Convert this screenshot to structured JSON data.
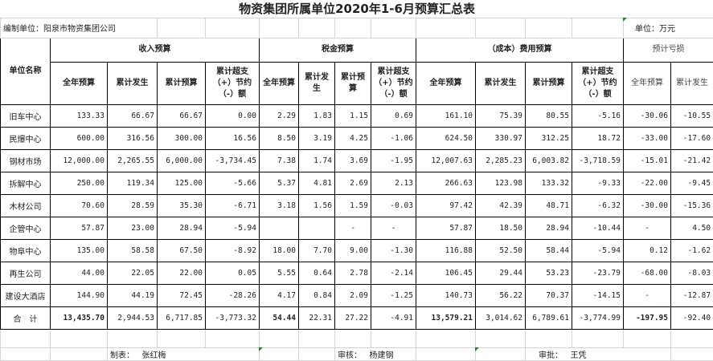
{
  "title": "物资集团所属单位2020年1-6月预算汇总表",
  "compiler": "编制单位：阳泉市物资集团公司",
  "unit": "单位：万元",
  "headers": {
    "unit_name": "单位名称",
    "income": "收入预算",
    "tax": "税金预算",
    "cost": "（成本）费用预算",
    "loss": "预计亏损",
    "annual": "全年预算",
    "actual": "累计发生",
    "cum_budget": "累计预算",
    "variance": "累计超支（+）节约（-）额"
  },
  "rows": [
    {
      "name": "旧车中心",
      "v": [
        "133.33",
        "66.67",
        "66.67",
        "0.00",
        "2.29",
        "1.83",
        "1.15",
        "0.69",
        "161.10",
        "75.39",
        "80.55",
        "-5.16",
        "-30.06",
        "-10.55"
      ]
    },
    {
      "name": "民爆中心",
      "v": [
        "600.00",
        "316.56",
        "300.00",
        "16.56",
        "8.50",
        "3.19",
        "4.25",
        "-1.06",
        "624.50",
        "330.97",
        "312.25",
        "18.72",
        "-33.00",
        "-17.60"
      ]
    },
    {
      "name": "钢材市场",
      "v": [
        "12,000.00",
        "2,265.55",
        "6,000.00",
        "-3,734.45",
        "7.38",
        "1.74",
        "3.69",
        "-1.95",
        "12,007.63",
        "2,285.23",
        "6,003.82",
        "-3,718.59",
        "-15.01",
        "-21.42"
      ]
    },
    {
      "name": "拆解中心",
      "v": [
        "250.00",
        "119.34",
        "125.00",
        "-5.66",
        "5.37",
        "4.81",
        "2.69",
        "2.13",
        "266.63",
        "123.98",
        "133.32",
        "-9.33",
        "-22.00",
        "-9.45"
      ]
    },
    {
      "name": "木材公司",
      "v": [
        "70.60",
        "28.59",
        "35.30",
        "-6.71",
        "3.18",
        "1.56",
        "1.59",
        "-0.03",
        "97.42",
        "42.39",
        "48.71",
        "-6.32",
        "-30.00",
        "-15.36"
      ]
    },
    {
      "name": "企管中心",
      "v": [
        "57.87",
        "23.00",
        "28.94",
        "-5.94",
        "",
        "",
        "-",
        "-",
        "57.87",
        "18.50",
        "28.94",
        "-10.44",
        "-",
        "4.50"
      ]
    },
    {
      "name": "物阜中心",
      "v": [
        "135.00",
        "58.58",
        "67.50",
        "-8.92",
        "18.00",
        "7.70",
        "9.00",
        "-1.30",
        "116.88",
        "52.50",
        "58.44",
        "-5.94",
        "0.12",
        "-1.62"
      ]
    },
    {
      "name": "再生公司",
      "v": [
        "44.00",
        "22.05",
        "22.00",
        "0.05",
        "5.55",
        "0.64",
        "2.78",
        "-2.14",
        "106.45",
        "29.44",
        "53.23",
        "-23.79",
        "-68.00",
        "-8.03"
      ]
    },
    {
      "name": "建设大酒店",
      "v": [
        "144.90",
        "44.19",
        "72.45",
        "-28.26",
        "4.17",
        "0.84",
        "2.09",
        "-1.25",
        "140.73",
        "56.22",
        "70.37",
        "-14.15",
        "-",
        "-12.87"
      ]
    }
  ],
  "total": {
    "name": "合　计",
    "v": [
      "13,435.70",
      "2,944.53",
      "6,717.85",
      "-3,773.32",
      "54.44",
      "22.31",
      "27.22",
      "-4.91",
      "13,579.21",
      "3,014.62",
      "6,789.61",
      "-3,774.99",
      "-197.95",
      "-92.40"
    ]
  },
  "footer": {
    "prepared_label": "制表：",
    "prepared_by": "张红梅",
    "reviewed_label": "审核：",
    "reviewed_by": "杨建钢",
    "approved_label": "审批：",
    "approved_by": "王凭"
  },
  "colors": {
    "border": "#000000",
    "grid": "#d4d4d4",
    "comment_marker": "#1a8a1a",
    "dash_red": "#ee0000"
  }
}
